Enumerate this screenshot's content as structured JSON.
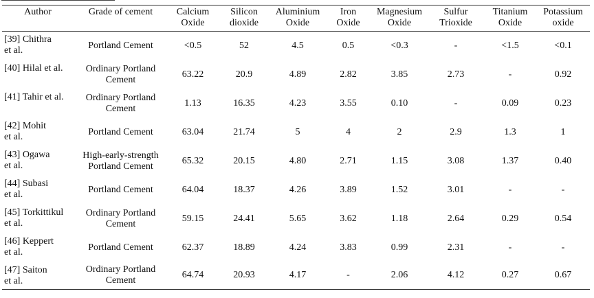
{
  "table": {
    "headers": [
      [
        "Author"
      ],
      [
        "Grade of cement"
      ],
      [
        "Calcium",
        "Oxide"
      ],
      [
        "Silicon",
        "dioxide"
      ],
      [
        "Aluminium",
        "Oxide"
      ],
      [
        "Iron",
        "Oxide"
      ],
      [
        "Magnesium",
        "Oxide"
      ],
      [
        "Sulfur",
        "Trioxide"
      ],
      [
        "Titanium",
        "Oxide"
      ],
      [
        "Potassium",
        "oxide"
      ]
    ],
    "rows": [
      {
        "author": [
          "[39] Chithra",
          "et al."
        ],
        "grade": [
          "Portland Cement"
        ],
        "values": [
          "<0.5",
          "52",
          "4.5",
          "0.5",
          "<0.3",
          "-",
          "<1.5",
          "<0.1"
        ]
      },
      {
        "author": [
          "[40] Hilal et al."
        ],
        "grade": [
          "Ordinary Portland",
          "Cement"
        ],
        "values": [
          "63.22",
          "20.9",
          "4.89",
          "2.82",
          "3.85",
          "2.73",
          "-",
          "0.92"
        ]
      },
      {
        "author": [
          "[41] Tahir et al."
        ],
        "grade": [
          "Ordinary Portland",
          "Cement"
        ],
        "values": [
          "1.13",
          "16.35",
          "4.23",
          "3.55",
          "0.10",
          "-",
          "0.09",
          "0.23"
        ]
      },
      {
        "author": [
          "[42] Mohit",
          "et al."
        ],
        "grade": [
          "Portland Cement"
        ],
        "values": [
          "63.04",
          "21.74",
          "5",
          "4",
          "2",
          "2.9",
          "1.3",
          "1"
        ]
      },
      {
        "author": [
          "[43] Ogawa",
          "et al."
        ],
        "grade": [
          "High-early-strength",
          "Portland Cement"
        ],
        "values": [
          "65.32",
          "20.15",
          "4.80",
          "2.71",
          "1.15",
          "3.08",
          "1.37",
          "0.40"
        ]
      },
      {
        "author": [
          "[44] Subasi",
          "et al."
        ],
        "grade": [
          "Portland Cement"
        ],
        "values": [
          "64.04",
          "18.37",
          "4.26",
          "3.89",
          "1.52",
          "3.01",
          "-",
          "-"
        ]
      },
      {
        "author": [
          "[45] Torkittikul",
          "et al."
        ],
        "grade": [
          "Ordinary Portland",
          "Cement"
        ],
        "values": [
          "59.15",
          "24.41",
          "5.65",
          "3.62",
          "1.18",
          "2.64",
          "0.29",
          "0.54"
        ]
      },
      {
        "author": [
          "[46] Keppert",
          "et al."
        ],
        "grade": [
          "Portland Cement"
        ],
        "values": [
          "62.37",
          "18.89",
          "4.24",
          "3.83",
          "0.99",
          "2.31",
          "-",
          "-"
        ]
      },
      {
        "author": [
          "[47] Saiton",
          "et al."
        ],
        "grade": [
          "Ordinary Portland",
          "Cement"
        ],
        "values": [
          "64.74",
          "20.93",
          "4.17",
          "-",
          "2.06",
          "4.12",
          "0.27",
          "0.67"
        ]
      }
    ]
  }
}
